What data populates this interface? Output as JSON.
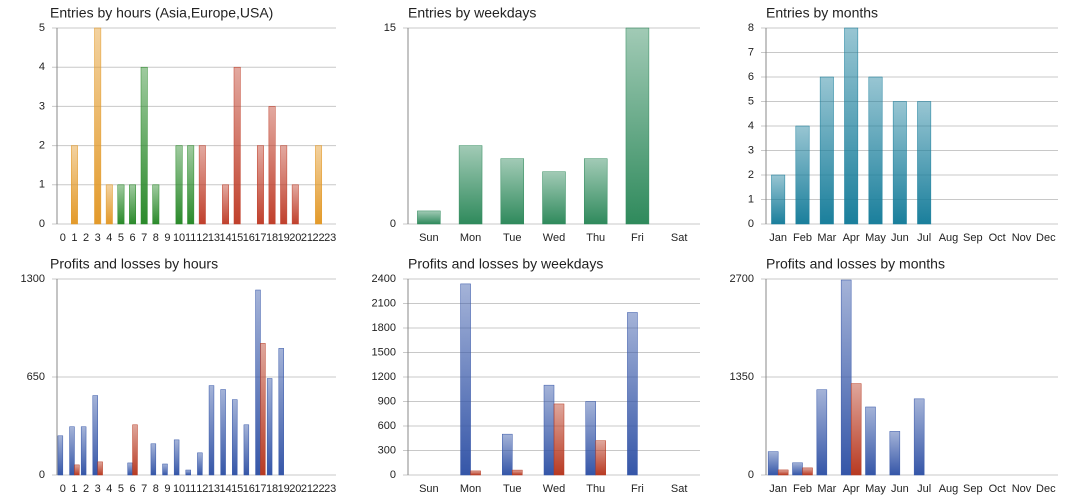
{
  "chart_data": [
    {
      "type": "bar",
      "title": "Entries by hours (Asia,Europe,USA)",
      "categories": [
        "0",
        "1",
        "2",
        "3",
        "4",
        "5",
        "6",
        "7",
        "8",
        "9",
        "10",
        "11",
        "12",
        "13",
        "14",
        "15",
        "16",
        "17",
        "18",
        "19",
        "20",
        "21",
        "22",
        "23"
      ],
      "values": [
        0,
        2,
        0,
        5,
        1,
        1,
        1,
        4,
        1,
        0,
        2,
        2,
        2,
        0,
        1,
        4,
        0,
        2,
        3,
        2,
        1,
        0,
        2,
        0
      ],
      "colors": [
        "#e39a2a",
        "#e39a2a",
        "#e39a2a",
        "#e39a2a",
        "#e39a2a",
        "#2a8a2a",
        "#2a8a2a",
        "#2a8a2a",
        "#2a8a2a",
        "#2a8a2a",
        "#2a8a2a",
        "#2a8a2a",
        "#c0402c",
        "#c0402c",
        "#c0402c",
        "#c0402c",
        "#c0402c",
        "#c0402c",
        "#c0402c",
        "#c0402c",
        "#c0402c",
        "#c0402c",
        "#e39a2a",
        "#e39a2a"
      ],
      "ylim": [
        0,
        5
      ],
      "yticks": [
        0,
        1,
        2,
        3,
        4,
        5
      ],
      "grid": true
    },
    {
      "type": "bar",
      "title": "Entries by weekdays",
      "categories": [
        "Sun",
        "Mon",
        "Tue",
        "Wed",
        "Thu",
        "Fri",
        "Sat"
      ],
      "values": [
        1,
        6,
        5,
        4,
        5,
        15,
        0
      ],
      "color": "#2f8a5c",
      "ylim": [
        0,
        15
      ],
      "yticks": [
        0,
        15
      ],
      "grid": true
    },
    {
      "type": "bar",
      "title": "Entries by months",
      "categories": [
        "Jan",
        "Feb",
        "Mar",
        "Apr",
        "May",
        "Jun",
        "Jul",
        "Aug",
        "Sep",
        "Oct",
        "Nov",
        "Dec"
      ],
      "values": [
        2,
        4,
        6,
        8,
        6,
        5,
        5,
        0,
        0,
        0,
        0,
        0
      ],
      "color": "#1a7f9c",
      "ylim": [
        0,
        8
      ],
      "yticks": [
        0,
        1,
        2,
        3,
        4,
        5,
        6,
        7,
        8
      ],
      "grid": true
    },
    {
      "type": "bar",
      "title": "Profits and losses by hours",
      "categories": [
        "0",
        "1",
        "2",
        "3",
        "4",
        "5",
        "6",
        "7",
        "8",
        "9",
        "10",
        "11",
        "12",
        "13",
        "14",
        "15",
        "16",
        "17",
        "18",
        "19",
        "20",
        "21",
        "22",
        "23"
      ],
      "series": [
        {
          "color": "#3556a8",
          "values": [
            260,
            320,
            320,
            527,
            0,
            0,
            80,
            0,
            207,
            73,
            233,
            33,
            147,
            593,
            567,
            500,
            333,
            1227,
            640,
            840,
            0,
            0,
            0,
            0
          ]
        },
        {
          "color": "#b83a22",
          "values": [
            0,
            67,
            0,
            87,
            0,
            0,
            333,
            0,
            0,
            0,
            0,
            0,
            0,
            0,
            0,
            0,
            0,
            873,
            0,
            0,
            0,
            0,
            0,
            0
          ]
        }
      ],
      "ylim": [
        0,
        1300
      ],
      "yticks": [
        0,
        650,
        1300
      ],
      "grid": true
    },
    {
      "type": "bar",
      "title": "Profits and losses by weekdays",
      "categories": [
        "Sun",
        "Mon",
        "Tue",
        "Wed",
        "Thu",
        "Fri",
        "Sat"
      ],
      "series": [
        {
          "color": "#3556a8",
          "values": [
            0,
            2340,
            500,
            1100,
            900,
            1990,
            0
          ]
        },
        {
          "color": "#b83a22",
          "values": [
            0,
            50,
            60,
            870,
            420,
            0,
            0
          ]
        }
      ],
      "ylim": [
        0,
        2400
      ],
      "yticks": [
        0,
        300,
        600,
        900,
        1200,
        1500,
        1800,
        2100,
        2400
      ],
      "grid": true
    },
    {
      "type": "bar",
      "title": "Profits and losses by months",
      "categories": [
        "Jan",
        "Feb",
        "Mar",
        "Apr",
        "May",
        "Jun",
        "Jul",
        "Aug",
        "Sep",
        "Oct",
        "Nov",
        "Dec"
      ],
      "series": [
        {
          "color": "#3556a8",
          "values": [
            322,
            168,
            1175,
            2686,
            937,
            601,
            1049,
            0,
            0,
            0,
            0,
            0
          ]
        },
        {
          "color": "#b83a22",
          "values": [
            70,
            98,
            0,
            1259,
            0,
            0,
            0,
            0,
            0,
            0,
            0,
            0
          ]
        }
      ],
      "ylim": [
        0,
        2700
      ],
      "yticks": [
        0,
        1350,
        2700
      ],
      "grid": true
    }
  ]
}
